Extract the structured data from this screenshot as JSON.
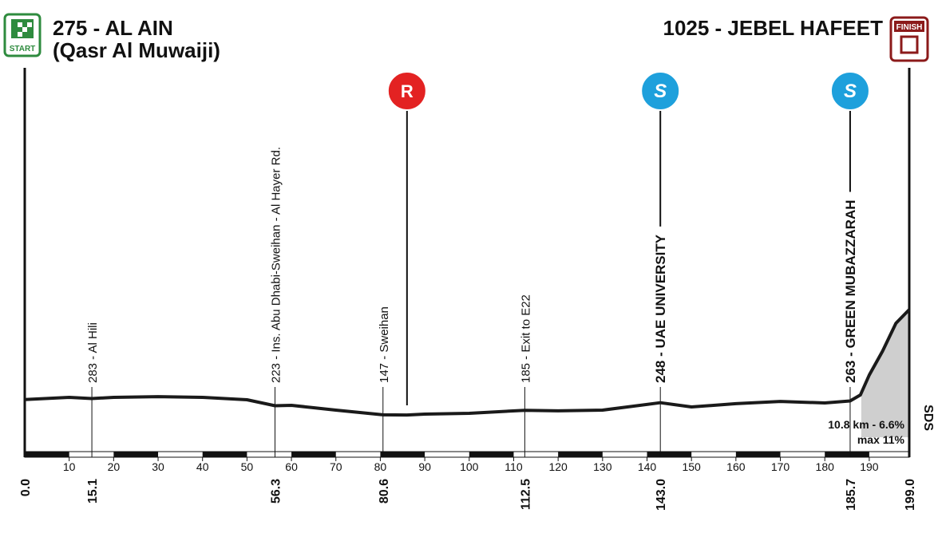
{
  "chart_data": {
    "type": "profile",
    "start": {
      "label": "275 - AL AIN",
      "sublabel": "(Qasr Al Muwaiji)",
      "icon": "START"
    },
    "finish": {
      "label": "1025 - JEBEL HAFEET",
      "icon": "FINISH"
    },
    "x": [
      0,
      10,
      15.1,
      20,
      30,
      40,
      50,
      56.3,
      60,
      70,
      80.6,
      86,
      90,
      100,
      112.5,
      120,
      130,
      143,
      150,
      160,
      170,
      180,
      185.7,
      188,
      190,
      193,
      196,
      199
    ],
    "values": [
      275,
      293,
      283,
      293,
      299,
      293,
      273,
      223,
      226,
      186,
      147,
      146,
      153,
      160,
      185,
      180,
      186,
      248,
      213,
      240,
      259,
      246,
      263,
      313,
      479,
      679,
      911,
      1025
    ],
    "color": "#1a1a1a",
    "xlim": [
      0,
      199
    ],
    "ylim": [
      0,
      1400
    ],
    "xticks": [
      10,
      20,
      30,
      40,
      50,
      60,
      70,
      80,
      90,
      100,
      110,
      120,
      130,
      140,
      150,
      160,
      170,
      180,
      190
    ],
    "waypoints": [
      {
        "km": {
          "value": 0,
          "label": "0.0"
        }
      },
      {
        "km": {
          "value": 15.1,
          "label": "15.1"
        },
        "label": "283 - Al Hili"
      },
      {
        "km": {
          "value": 56.3,
          "label": "56.3"
        },
        "label": "223 - Ins. Abu Dhabi-Sweihan - Al Hayer Rd."
      },
      {
        "km": {
          "value": 80.6,
          "label": "80.6"
        },
        "label": "147 - Sweihan"
      },
      {
        "km": {
          "value": 112.5,
          "label": "112.5"
        },
        "label": "185 - Exit to E22"
      },
      {
        "km": {
          "value": 143,
          "label": "143.0"
        },
        "label": "248 - UAE UNIVERSITY",
        "sprint": "S"
      },
      {
        "km": {
          "value": 185.7,
          "label": "185.7"
        },
        "label": "263 - GREEN MUBAZZARAH",
        "sprint": "S"
      },
      {
        "km": {
          "value": 199,
          "label": "199.0"
        }
      }
    ],
    "feed_zone": {
      "km": 86,
      "label": "R"
    },
    "climb": {
      "from": 188.2,
      "to": 199,
      "label": "10.8 km - 6.6%",
      "max": "max 11%"
    },
    "logo": "SDS"
  }
}
